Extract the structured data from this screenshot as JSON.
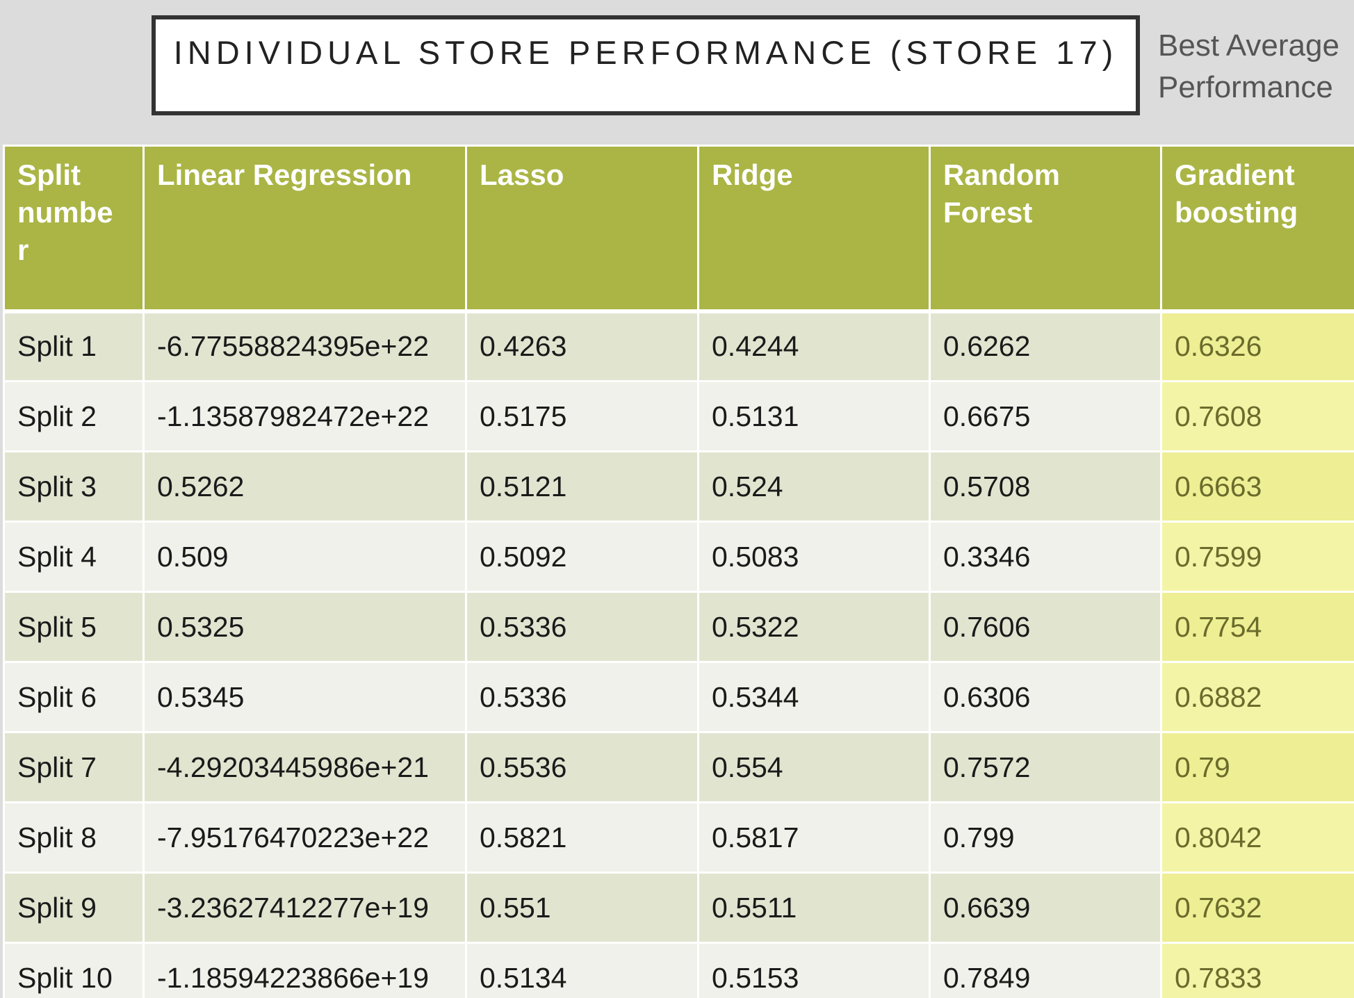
{
  "title": "INDIVIDUAL STORE PERFORMANCE (STORE 17)",
  "side_note": [
    "Best Average",
    "Performance"
  ],
  "table": {
    "headers": [
      "Split numbe r",
      "Linear Regression",
      "Lasso",
      "Ridge",
      "Random Forest",
      "Gradient boosting"
    ],
    "header_lines": [
      [
        "Split",
        "numbe",
        "r"
      ],
      [
        "Linear Regression"
      ],
      [
        "Lasso"
      ],
      [
        "Ridge"
      ],
      [
        "Random",
        "Forest"
      ],
      [
        "Gradient",
        "boosting"
      ]
    ],
    "best_column": "Gradient boosting",
    "rows": [
      [
        "Split 1",
        "-6.77558824395e+22",
        "0.4263",
        "0.4244",
        "0.6262",
        "0.6326"
      ],
      [
        "Split 2",
        "-1.13587982472e+22",
        "0.5175",
        "0.5131",
        "0.6675",
        "0.7608"
      ],
      [
        "Split 3",
        "0.5262",
        "0.5121",
        "0.524",
        "0.5708",
        "0.6663"
      ],
      [
        "Split 4",
        "0.509",
        "0.5092",
        "0.5083",
        "0.3346",
        "0.7599"
      ],
      [
        "Split 5",
        "0.5325",
        "0.5336",
        "0.5322",
        "0.7606",
        "0.7754"
      ],
      [
        "Split 6",
        "0.5345",
        "0.5336",
        "0.5344",
        "0.6306",
        "0.6882"
      ],
      [
        "Split 7",
        "-4.29203445986e+21",
        "0.5536",
        "0.554",
        "0.7572",
        "0.79"
      ],
      [
        "Split 8",
        "-7.95176470223e+22",
        "0.5821",
        "0.5817",
        "0.799",
        "0.8042"
      ],
      [
        "Split 9",
        "-3.23627412277e+19",
        "0.551",
        "0.5511",
        "0.6639",
        "0.7632"
      ],
      [
        "Split 10",
        "-1.18594223866e+19",
        "0.5134",
        "0.5153",
        "0.7849",
        "0.7833"
      ]
    ]
  },
  "colors": {
    "header_bg": "#aab545",
    "row_odd_bg": "#e1e5d0",
    "row_even_bg": "#f0f1ea",
    "best_bg": "#f2f29e",
    "best_text": "#6b6b2c"
  }
}
